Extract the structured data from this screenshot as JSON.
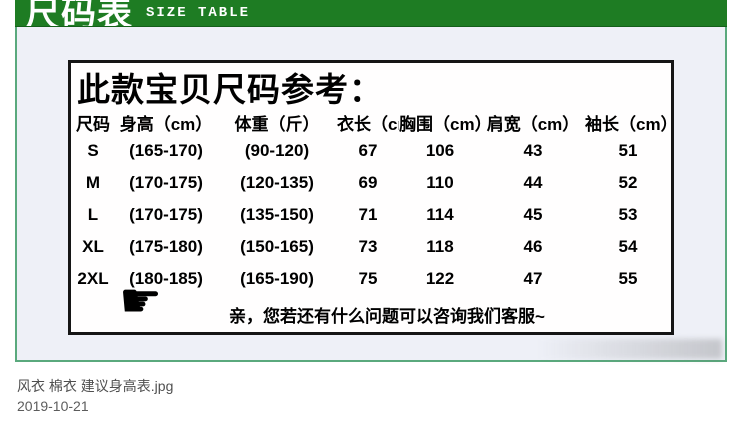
{
  "banner": {
    "title_cn": "尺码表",
    "title_en": "SIZE TABLE"
  },
  "size_chart": {
    "title": "此款宝贝尺码参考：",
    "columns": [
      "尺码",
      "身高（cm）",
      "体重（斤）",
      "衣长（cm）",
      "胸围（cm）",
      "肩宽（cm）",
      "袖长（cm）"
    ],
    "rows": [
      [
        "S",
        "(165-170)",
        "(90-120)",
        "67",
        "106",
        "43",
        "51"
      ],
      [
        "M",
        "(170-175)",
        "(120-135)",
        "69",
        "110",
        "44",
        "52"
      ],
      [
        "L",
        "(170-175)",
        "(135-150)",
        "71",
        "114",
        "45",
        "53"
      ],
      [
        "XL",
        "(175-180)",
        "(150-165)",
        "73",
        "118",
        "46",
        "54"
      ],
      [
        "2XL",
        "(180-185)",
        "(165-190)",
        "75",
        "122",
        "47",
        "55"
      ]
    ],
    "note": "亲，您若还有什么问题可以咨询我们客服~",
    "hand_icon": "☛"
  },
  "footer": {
    "filename": "风衣 棉衣 建议身高表.jpg",
    "date": "2019-10-21"
  },
  "colors": {
    "banner_green": "#1e7c23",
    "border_teal": "#5aa97d",
    "body_bg": "#eef0f7",
    "table_border": "#151515"
  }
}
